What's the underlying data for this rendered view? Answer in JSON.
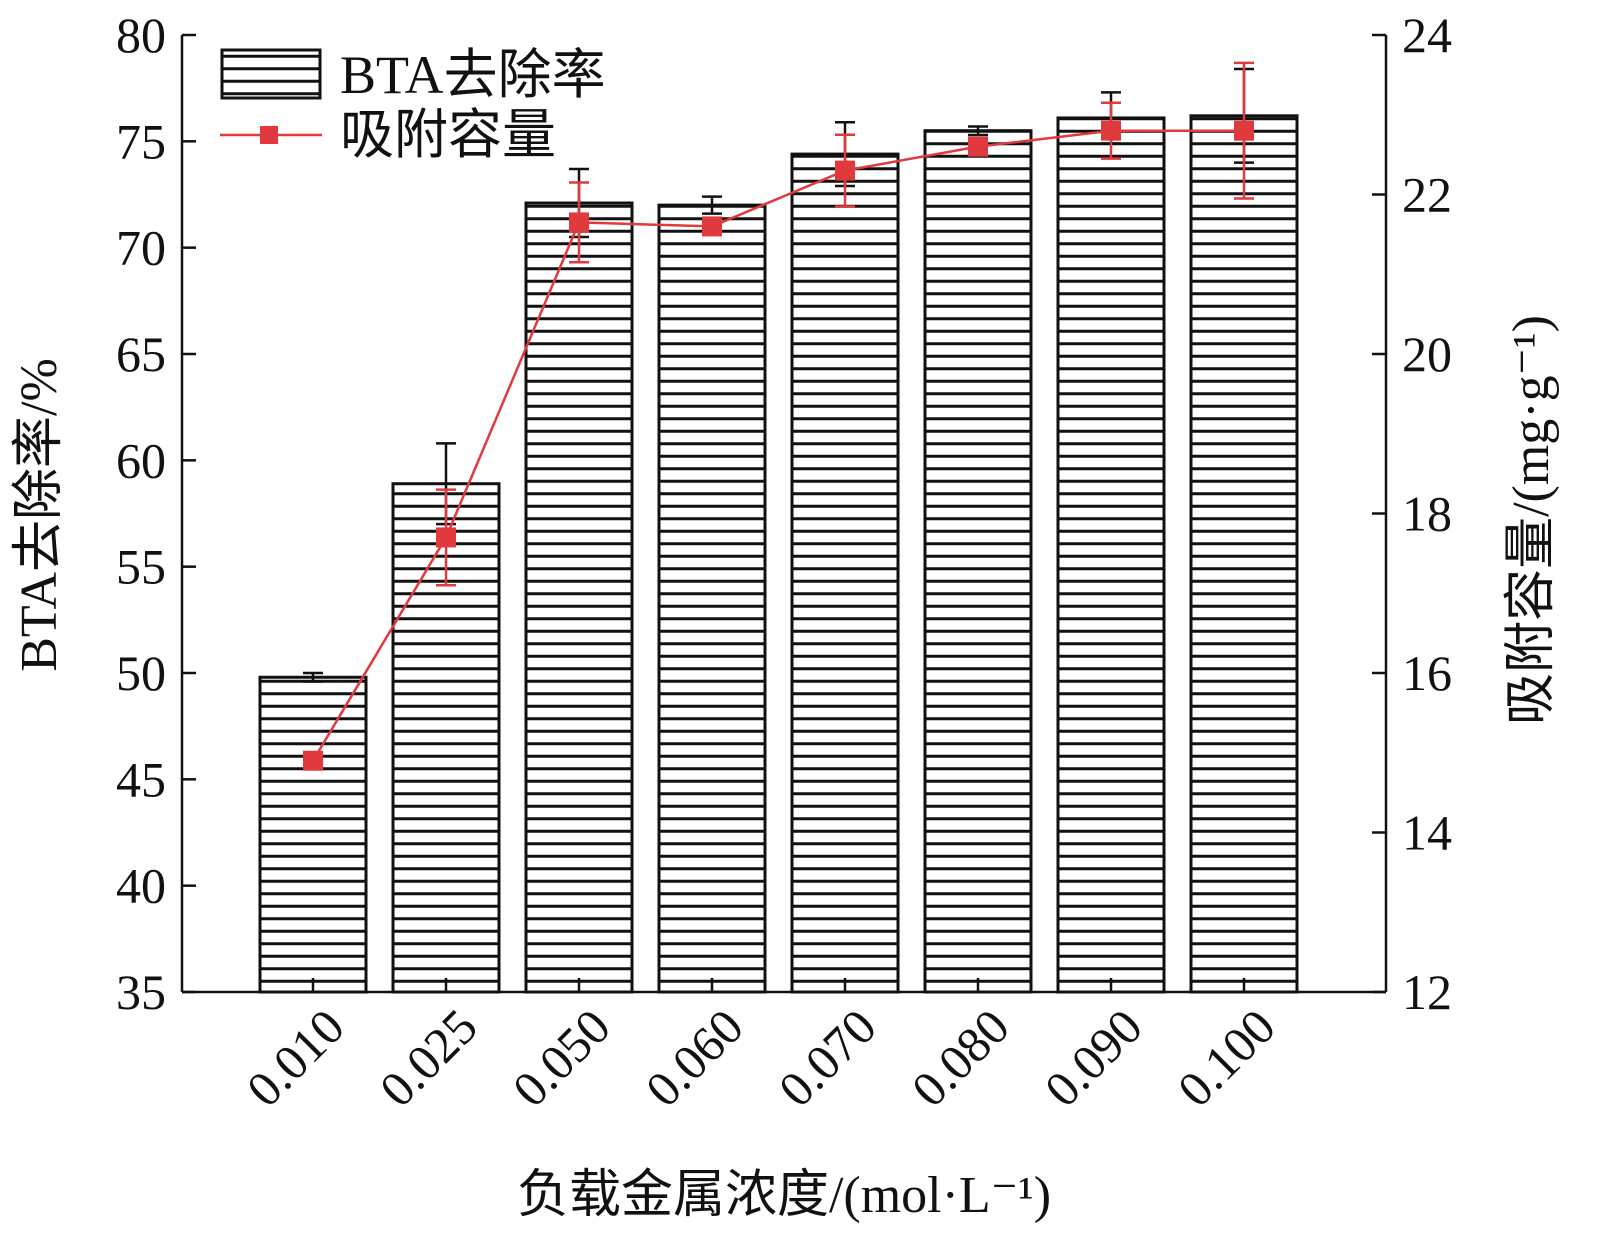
{
  "chart_data": {
    "type": "bar",
    "categories": [
      "0.010",
      "0.025",
      "0.050",
      "0.060",
      "0.070",
      "0.080",
      "0.090",
      "0.100"
    ],
    "xlabel": "负载金属浓度/(mol·L⁻¹)",
    "ylabel_left": "BTA去除率/%",
    "ylabel_right": "吸附容量/(mg·g⁻¹)",
    "ylim_left": [
      35,
      80
    ],
    "yticks_left": [
      "35",
      "40",
      "45",
      "50",
      "55",
      "60",
      "65",
      "70",
      "75",
      "80"
    ],
    "ylim_right": [
      12,
      24
    ],
    "yticks_right": [
      "12",
      "14",
      "16",
      "18",
      "20",
      "22",
      "24"
    ],
    "grid": false,
    "legend_position": "top-left",
    "series": [
      {
        "name": "BTA去除率",
        "kind": "bar",
        "axis": "left",
        "pattern": "horizontal-hatch",
        "color": "#111111",
        "values": [
          49.8,
          58.9,
          72.1,
          72.0,
          74.4,
          75.5,
          76.1,
          76.2
        ],
        "errors": [
          0.2,
          1.9,
          1.6,
          0.4,
          1.5,
          0.2,
          1.2,
          2.2
        ]
      },
      {
        "name": "吸附容量",
        "kind": "line",
        "axis": "right",
        "marker": "square",
        "color": "#e0393e",
        "values": [
          14.9,
          17.7,
          21.65,
          21.6,
          22.3,
          22.6,
          22.8,
          22.8
        ],
        "errors": [
          0.0,
          0.6,
          0.5,
          0.0,
          0.45,
          0.0,
          0.35,
          0.85
        ]
      }
    ]
  }
}
